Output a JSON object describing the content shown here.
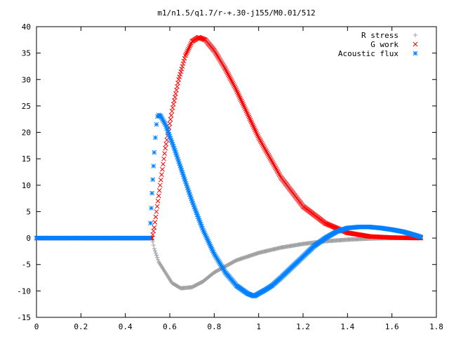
{
  "chart_data": {
    "type": "scatter",
    "title": "m1/n1.5/q1.7/r-+.30-j155/M0.01/512",
    "xlabel": "",
    "ylabel": "",
    "xlim": [
      0,
      1.8
    ],
    "ylim": [
      -15,
      40
    ],
    "x_ticks": [
      "0",
      "0.2",
      "0.4",
      "0.6",
      "0.8",
      "1",
      "1.2",
      "1.4",
      "1.6",
      "1.8"
    ],
    "y_ticks": [
      "-15",
      "-10",
      "-5",
      "0",
      "5",
      "10",
      "15",
      "20",
      "25",
      "30",
      "35",
      "40"
    ],
    "grid": false,
    "legend_position": "top-right",
    "series": [
      {
        "name": "R stress",
        "marker": "+",
        "color": "#a0a0a0",
        "points": [
          [
            0.0,
            0
          ],
          [
            0.5,
            0
          ],
          [
            0.52,
            0
          ],
          [
            0.53,
            -2
          ],
          [
            0.55,
            -4.5
          ],
          [
            0.58,
            -6.5
          ],
          [
            0.61,
            -8.5
          ],
          [
            0.65,
            -9.5
          ],
          [
            0.7,
            -9.3
          ],
          [
            0.75,
            -8.2
          ],
          [
            0.8,
            -6.5
          ],
          [
            0.9,
            -4.2
          ],
          [
            1.0,
            -2.8
          ],
          [
            1.1,
            -1.8
          ],
          [
            1.2,
            -1.1
          ],
          [
            1.3,
            -0.6
          ],
          [
            1.4,
            -0.3
          ],
          [
            1.5,
            -0.1
          ],
          [
            1.6,
            0
          ],
          [
            1.73,
            0
          ]
        ]
      },
      {
        "name": "G work",
        "marker": "x",
        "color": "#ff0000",
        "points": [
          [
            0.0,
            0
          ],
          [
            0.5,
            0
          ],
          [
            0.52,
            0
          ],
          [
            0.53,
            2
          ],
          [
            0.55,
            8
          ],
          [
            0.58,
            17
          ],
          [
            0.61,
            24
          ],
          [
            0.64,
            30
          ],
          [
            0.67,
            34.5
          ],
          [
            0.7,
            37.2
          ],
          [
            0.73,
            38
          ],
          [
            0.76,
            37.5
          ],
          [
            0.8,
            35.5
          ],
          [
            0.85,
            32
          ],
          [
            0.9,
            28
          ],
          [
            0.95,
            23.5
          ],
          [
            1.0,
            19
          ],
          [
            1.1,
            11.5
          ],
          [
            1.2,
            6
          ],
          [
            1.3,
            2.8
          ],
          [
            1.4,
            1
          ],
          [
            1.5,
            0.3
          ],
          [
            1.6,
            0.1
          ],
          [
            1.73,
            0
          ]
        ]
      },
      {
        "name": "Acoustic flux",
        "marker": "*",
        "color": "#0080ff",
        "points": [
          [
            0.0,
            0
          ],
          [
            0.51,
            0
          ],
          [
            0.52,
            8.5
          ],
          [
            0.53,
            16.2
          ],
          [
            0.535,
            19
          ],
          [
            0.54,
            21.5
          ],
          [
            0.545,
            23
          ],
          [
            0.55,
            23.3
          ],
          [
            0.56,
            23
          ],
          [
            0.58,
            21.5
          ],
          [
            0.62,
            17
          ],
          [
            0.66,
            12
          ],
          [
            0.7,
            7
          ],
          [
            0.75,
            1.5
          ],
          [
            0.8,
            -3
          ],
          [
            0.85,
            -6.5
          ],
          [
            0.9,
            -9
          ],
          [
            0.95,
            -10.5
          ],
          [
            0.98,
            -11
          ],
          [
            1.0,
            -10.5
          ],
          [
            1.03,
            -9.8
          ],
          [
            1.06,
            -9
          ],
          [
            1.1,
            -7.5
          ],
          [
            1.15,
            -5.5
          ],
          [
            1.2,
            -3.5
          ],
          [
            1.25,
            -1.5
          ],
          [
            1.3,
            0
          ],
          [
            1.35,
            1.2
          ],
          [
            1.4,
            1.9
          ],
          [
            1.45,
            2.1
          ],
          [
            1.5,
            2.1
          ],
          [
            1.55,
            1.9
          ],
          [
            1.6,
            1.6
          ],
          [
            1.65,
            1.2
          ],
          [
            1.7,
            0.6
          ],
          [
            1.73,
            0.2
          ]
        ]
      }
    ]
  }
}
